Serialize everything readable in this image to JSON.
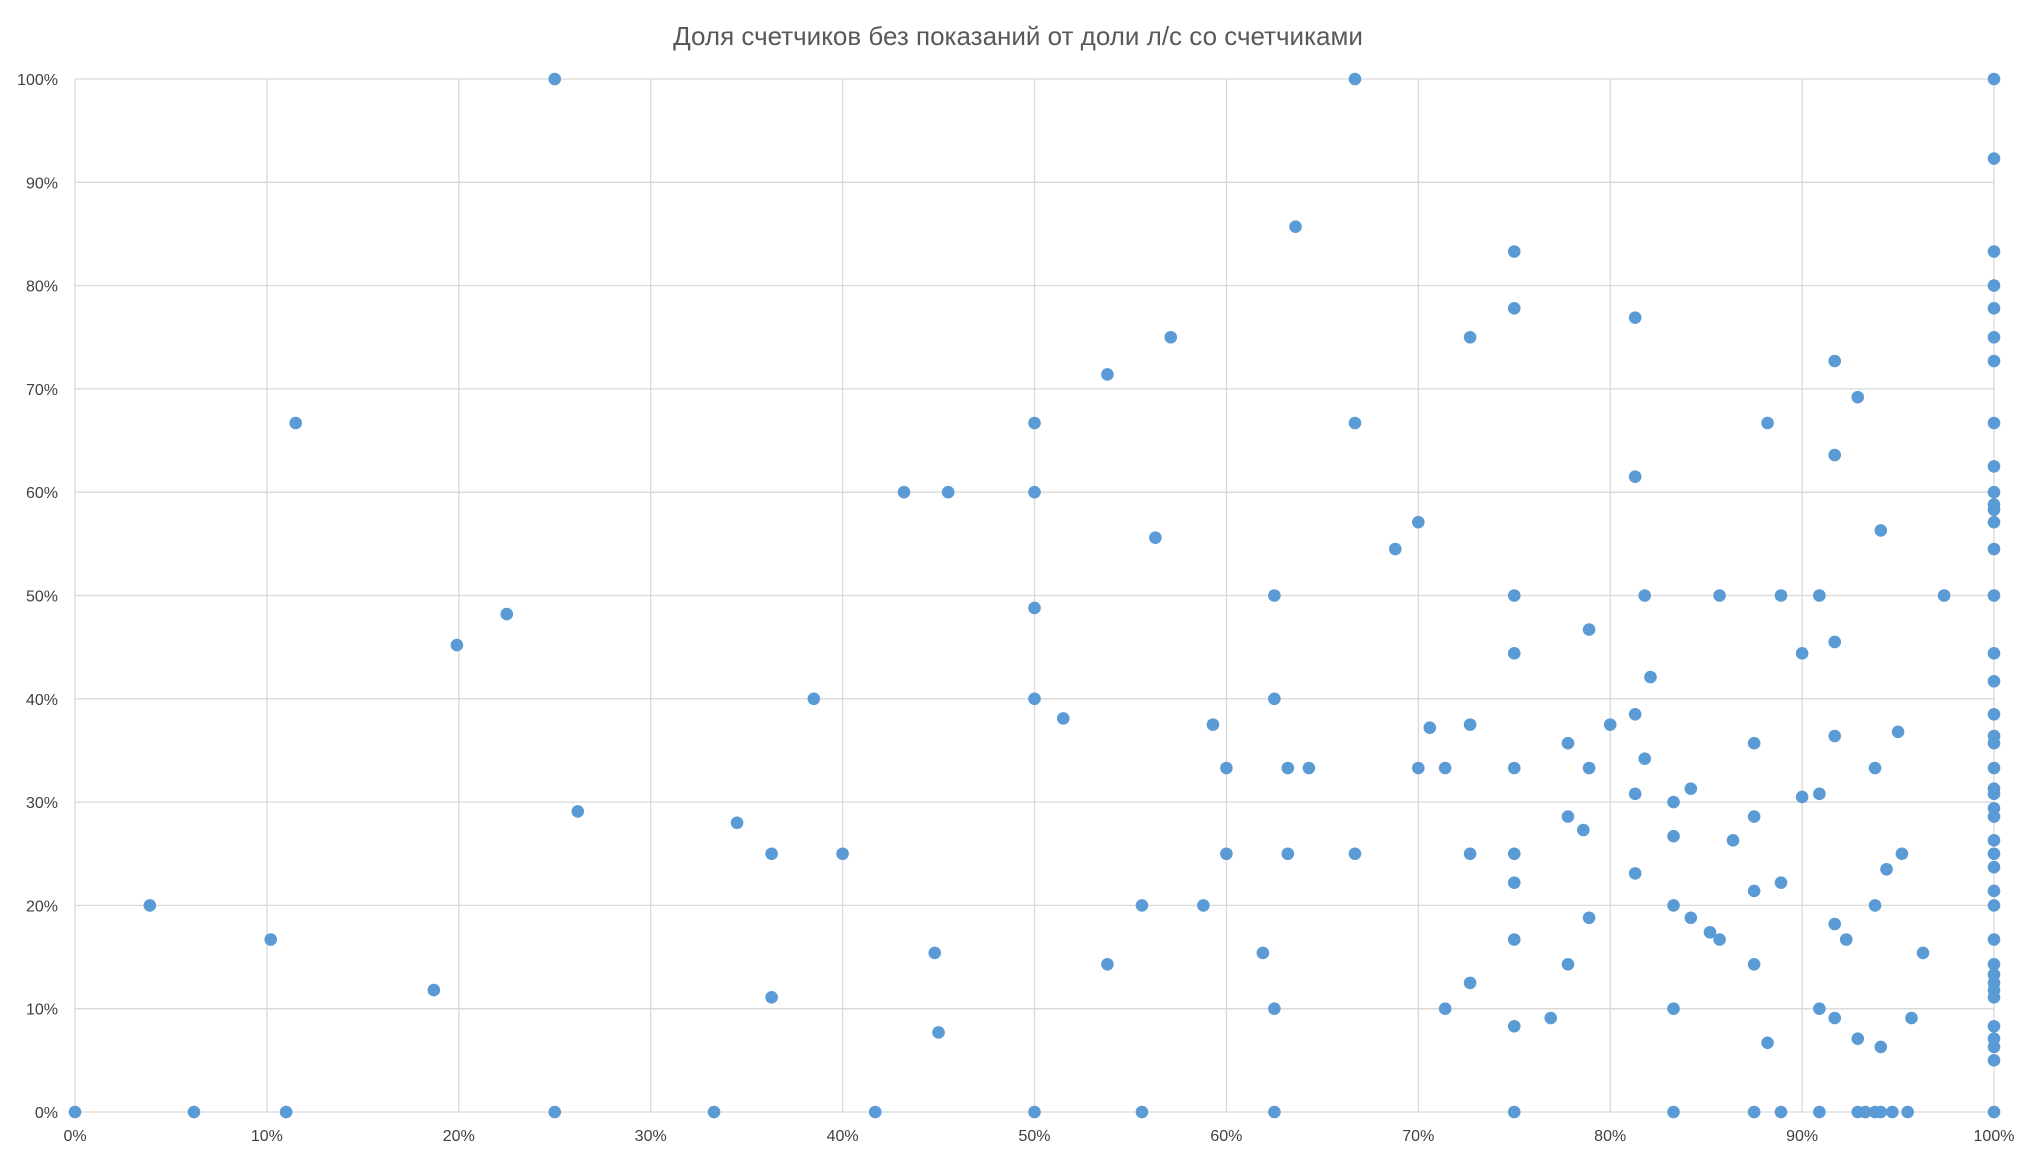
{
  "chart_data": {
    "type": "scatter",
    "title": "Доля счетчиков без показаний от доли л/с со счетчиками",
    "xlabel": "",
    "ylabel": "",
    "xlim": [
      0,
      1
    ],
    "ylim": [
      0,
      1
    ],
    "grid": true,
    "legend": "none",
    "x_ticks": [
      "0%",
      "10%",
      "20%",
      "30%",
      "40%",
      "50%",
      "60%",
      "70%",
      "80%",
      "90%",
      "100%"
    ],
    "y_ticks": [
      "0%",
      "10%",
      "20%",
      "30%",
      "40%",
      "50%",
      "60%",
      "70%",
      "80%",
      "90%",
      "100%"
    ],
    "colors": {
      "marker": "#5B9BD5",
      "grid": "#d9d9d9",
      "text": "#595959"
    },
    "points": [
      [
        0.0,
        0.0
      ],
      [
        0.039,
        0.2
      ],
      [
        0.062,
        0.0
      ],
      [
        0.102,
        0.167
      ],
      [
        0.11,
        0.0
      ],
      [
        0.115,
        0.667
      ],
      [
        0.187,
        0.118
      ],
      [
        0.199,
        0.452
      ],
      [
        0.225,
        0.482
      ],
      [
        0.25,
        1.0
      ],
      [
        0.25,
        0.0
      ],
      [
        0.262,
        0.291
      ],
      [
        0.333,
        0.0
      ],
      [
        0.345,
        0.28
      ],
      [
        0.363,
        0.25
      ],
      [
        0.363,
        0.111
      ],
      [
        0.385,
        0.4
      ],
      [
        0.4,
        0.25
      ],
      [
        0.417,
        0.0
      ],
      [
        0.432,
        0.6
      ],
      [
        0.448,
        0.154
      ],
      [
        0.45,
        0.077
      ],
      [
        0.455,
        0.6
      ],
      [
        0.5,
        0.667
      ],
      [
        0.5,
        0.6
      ],
      [
        0.5,
        0.488
      ],
      [
        0.5,
        0.4
      ],
      [
        0.5,
        0.0
      ],
      [
        0.515,
        0.381
      ],
      [
        0.538,
        0.714
      ],
      [
        0.538,
        0.143
      ],
      [
        0.556,
        0.2
      ],
      [
        0.556,
        0.0
      ],
      [
        0.563,
        0.556
      ],
      [
        0.571,
        0.75
      ],
      [
        0.588,
        0.2
      ],
      [
        0.593,
        0.375
      ],
      [
        0.6,
        0.333
      ],
      [
        0.6,
        0.25
      ],
      [
        0.619,
        0.154
      ],
      [
        0.625,
        0.5
      ],
      [
        0.625,
        0.4
      ],
      [
        0.625,
        0.1
      ],
      [
        0.625,
        0.0
      ],
      [
        0.632,
        0.333
      ],
      [
        0.632,
        0.25
      ],
      [
        0.636,
        0.857
      ],
      [
        0.643,
        0.333
      ],
      [
        0.667,
        1.0
      ],
      [
        0.667,
        0.667
      ],
      [
        0.667,
        0.25
      ],
      [
        0.688,
        0.545
      ],
      [
        0.7,
        0.571
      ],
      [
        0.7,
        0.333
      ],
      [
        0.706,
        0.372
      ],
      [
        0.714,
        0.333
      ],
      [
        0.714,
        0.1
      ],
      [
        0.727,
        0.75
      ],
      [
        0.727,
        0.375
      ],
      [
        0.727,
        0.25
      ],
      [
        0.727,
        0.125
      ],
      [
        0.75,
        0.833
      ],
      [
        0.75,
        0.778
      ],
      [
        0.75,
        0.5
      ],
      [
        0.75,
        0.444
      ],
      [
        0.75,
        0.333
      ],
      [
        0.75,
        0.25
      ],
      [
        0.75,
        0.222
      ],
      [
        0.75,
        0.167
      ],
      [
        0.75,
        0.083
      ],
      [
        0.75,
        0.0
      ],
      [
        0.769,
        0.091
      ],
      [
        0.778,
        0.357
      ],
      [
        0.778,
        0.286
      ],
      [
        0.778,
        0.143
      ],
      [
        0.786,
        0.273
      ],
      [
        0.789,
        0.467
      ],
      [
        0.789,
        0.333
      ],
      [
        0.789,
        0.188
      ],
      [
        0.8,
        0.375
      ],
      [
        0.813,
        0.769
      ],
      [
        0.813,
        0.615
      ],
      [
        0.813,
        0.385
      ],
      [
        0.813,
        0.308
      ],
      [
        0.813,
        0.231
      ],
      [
        0.818,
        0.5
      ],
      [
        0.818,
        0.342
      ],
      [
        0.821,
        0.421
      ],
      [
        0.833,
        0.3
      ],
      [
        0.833,
        0.267
      ],
      [
        0.833,
        0.2
      ],
      [
        0.833,
        0.1
      ],
      [
        0.833,
        0.0
      ],
      [
        0.842,
        0.313
      ],
      [
        0.842,
        0.188
      ],
      [
        0.852,
        0.174
      ],
      [
        0.857,
        0.5
      ],
      [
        0.857,
        0.167
      ],
      [
        0.864,
        0.263
      ],
      [
        0.875,
        0.357
      ],
      [
        0.875,
        0.286
      ],
      [
        0.875,
        0.214
      ],
      [
        0.875,
        0.143
      ],
      [
        0.875,
        0.0
      ],
      [
        0.882,
        0.667
      ],
      [
        0.882,
        0.067
      ],
      [
        0.889,
        0.5
      ],
      [
        0.889,
        0.222
      ],
      [
        0.889,
        0.0
      ],
      [
        0.9,
        0.444
      ],
      [
        0.9,
        0.305
      ],
      [
        0.909,
        0.5
      ],
      [
        0.909,
        0.308
      ],
      [
        0.909,
        0.1
      ],
      [
        0.909,
        0.0
      ],
      [
        0.917,
        0.727
      ],
      [
        0.917,
        0.636
      ],
      [
        0.917,
        0.455
      ],
      [
        0.917,
        0.364
      ],
      [
        0.917,
        0.182
      ],
      [
        0.917,
        0.091
      ],
      [
        0.923,
        0.167
      ],
      [
        0.929,
        0.692
      ],
      [
        0.929,
        0.071
      ],
      [
        0.929,
        0.0
      ],
      [
        0.933,
        0.0
      ],
      [
        0.938,
        0.333
      ],
      [
        0.938,
        0.2
      ],
      [
        0.938,
        0.0
      ],
      [
        0.941,
        0.563
      ],
      [
        0.941,
        0.063
      ],
      [
        0.941,
        0.0
      ],
      [
        0.944,
        0.235
      ],
      [
        0.947,
        0.0
      ],
      [
        0.95,
        0.368
      ],
      [
        0.952,
        0.25
      ],
      [
        0.955,
        0.0
      ],
      [
        0.957,
        0.091
      ],
      [
        0.963,
        0.154
      ],
      [
        0.974,
        0.5
      ],
      [
        1.0,
        1.0
      ],
      [
        1.0,
        0.923
      ],
      [
        1.0,
        0.833
      ],
      [
        1.0,
        0.8
      ],
      [
        1.0,
        0.778
      ],
      [
        1.0,
        0.75
      ],
      [
        1.0,
        0.727
      ],
      [
        1.0,
        0.667
      ],
      [
        1.0,
        0.625
      ],
      [
        1.0,
        0.6
      ],
      [
        1.0,
        0.588
      ],
      [
        1.0,
        0.583
      ],
      [
        1.0,
        0.571
      ],
      [
        1.0,
        0.545
      ],
      [
        1.0,
        0.5
      ],
      [
        1.0,
        0.444
      ],
      [
        1.0,
        0.417
      ],
      [
        1.0,
        0.385
      ],
      [
        1.0,
        0.364
      ],
      [
        1.0,
        0.357
      ],
      [
        1.0,
        0.333
      ],
      [
        1.0,
        0.313
      ],
      [
        1.0,
        0.308
      ],
      [
        1.0,
        0.294
      ],
      [
        1.0,
        0.286
      ],
      [
        1.0,
        0.25
      ],
      [
        1.0,
        0.263
      ],
      [
        1.0,
        0.237
      ],
      [
        1.0,
        0.214
      ],
      [
        1.0,
        0.2
      ],
      [
        1.0,
        0.167
      ],
      [
        1.0,
        0.143
      ],
      [
        1.0,
        0.133
      ],
      [
        1.0,
        0.125
      ],
      [
        1.0,
        0.118
      ],
      [
        1.0,
        0.111
      ],
      [
        1.0,
        0.083
      ],
      [
        1.0,
        0.071
      ],
      [
        1.0,
        0.063
      ],
      [
        1.0,
        0.05
      ],
      [
        1.0,
        0.0
      ]
    ]
  }
}
